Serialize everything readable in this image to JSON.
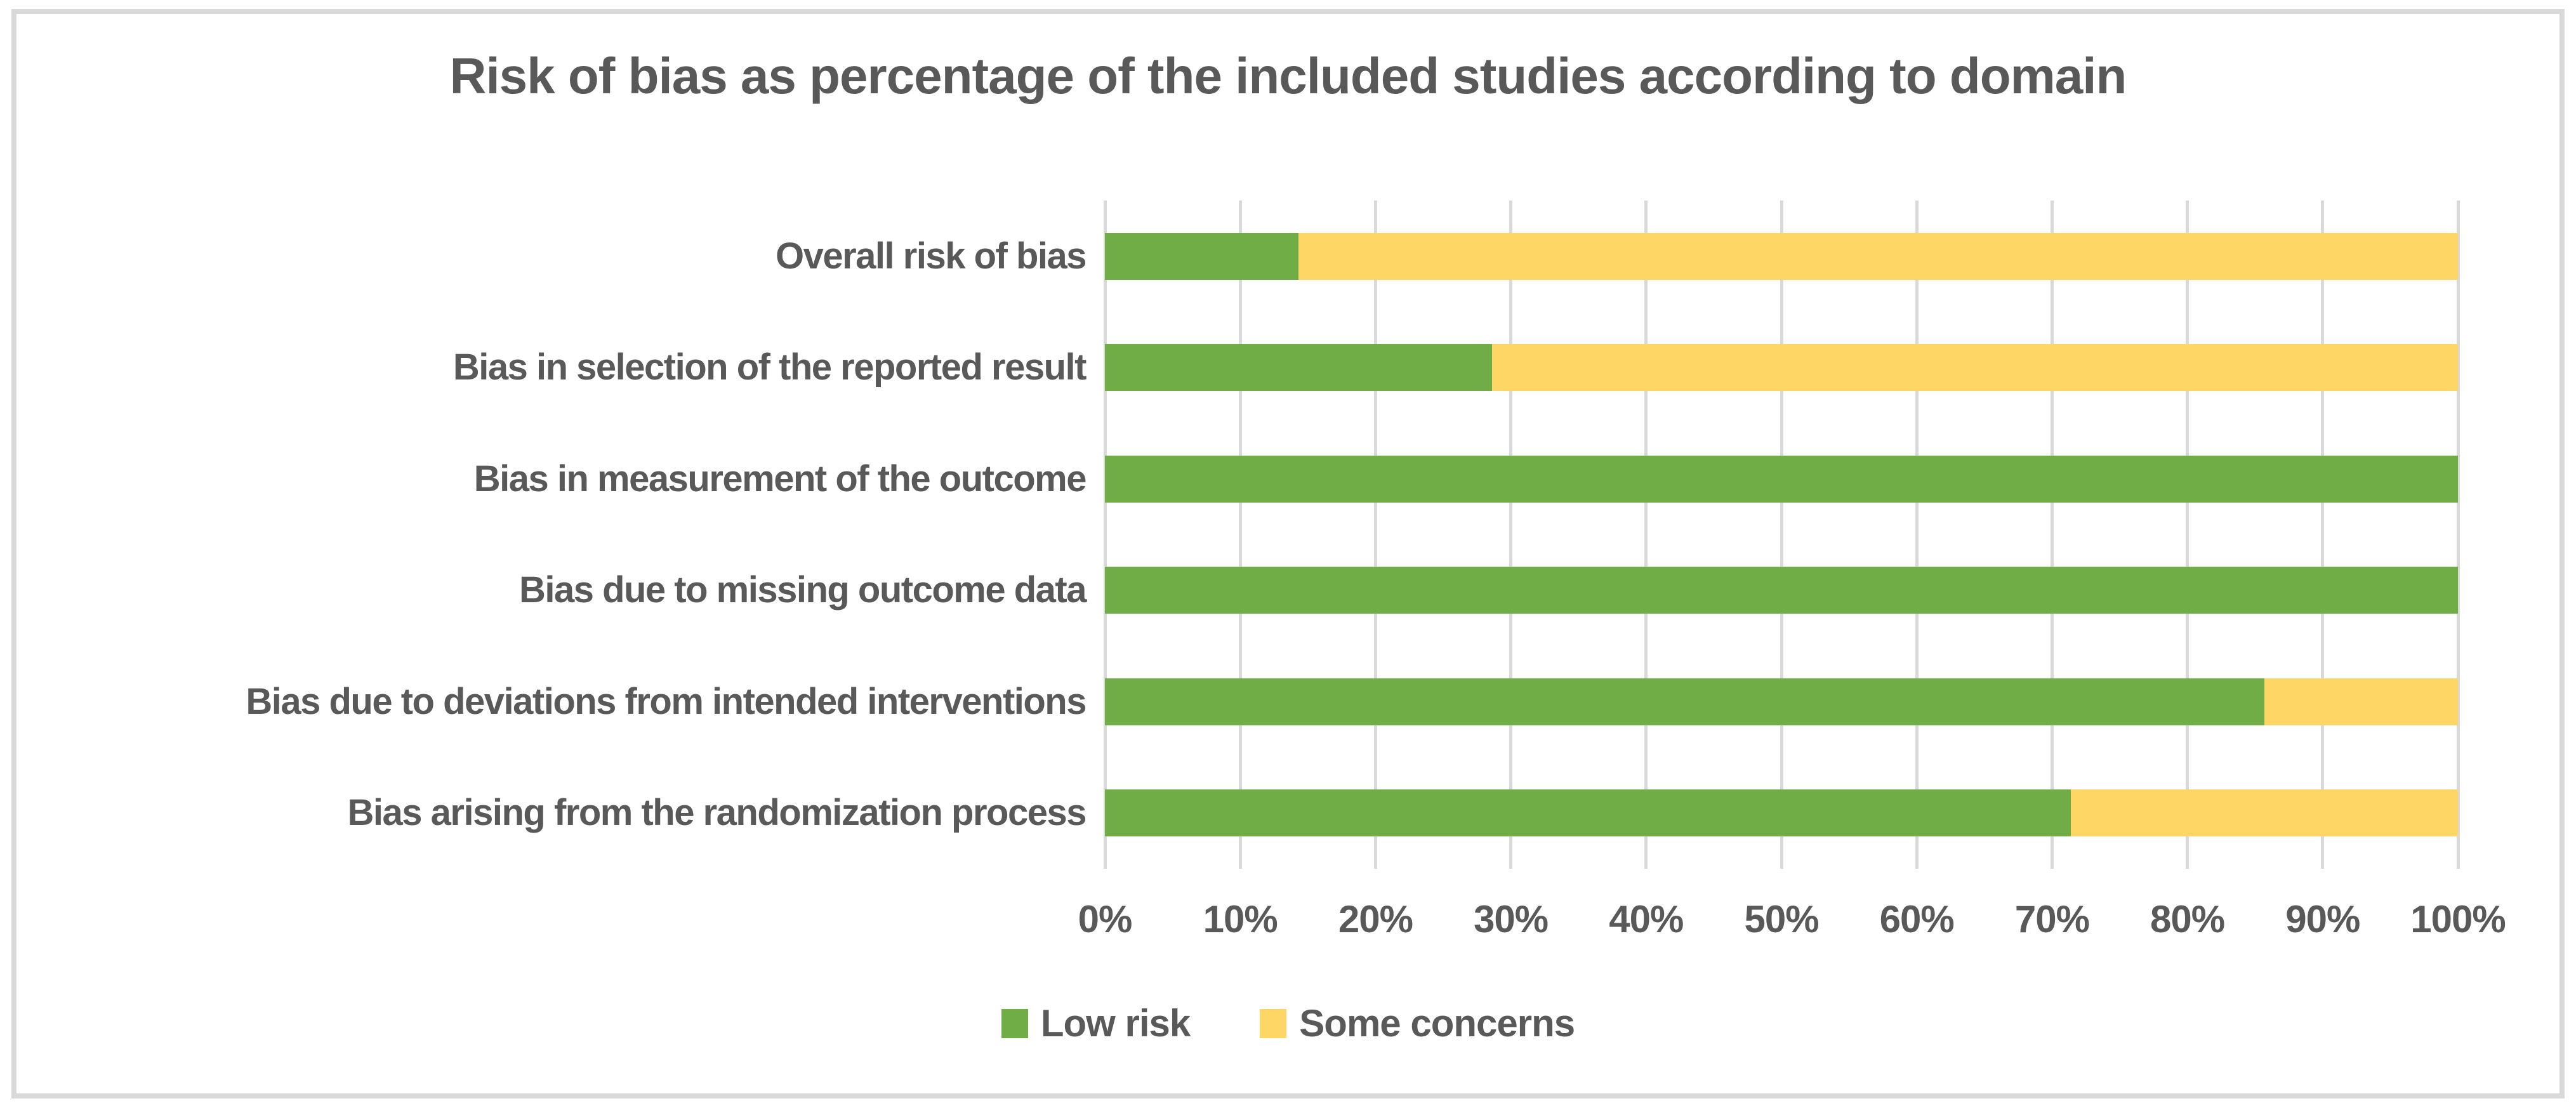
{
  "chart": {
    "title": "Risk of bias as percentage of the included studies according to domain",
    "text_color": "#595959",
    "gridline_color": "#D9D9D9",
    "frame_border_color": "#D9D9D9",
    "background_color": "#ffffff"
  },
  "chart_data": {
    "type": "bar",
    "orientation": "horizontal",
    "stacked": true,
    "title": "Risk of bias as percentage of the included studies according to domain",
    "categories": [
      "Overall risk of bias",
      "Bias in selection of the reported result",
      "Bias in measurement of the outcome",
      "Bias due to missing outcome data",
      "Bias due to deviations from intended interventions",
      "Bias arising from the randomization process"
    ],
    "series": [
      {
        "name": "Low risk",
        "color": "#70AD47",
        "values": [
          14.3,
          28.6,
          100,
          100,
          85.7,
          71.4
        ]
      },
      {
        "name": "Some concerns",
        "color": "#FDD665",
        "values": [
          85.7,
          71.4,
          0,
          0,
          14.3,
          28.6
        ]
      }
    ],
    "xlabel": "",
    "ylabel": "",
    "xlim": [
      0,
      100
    ],
    "x_tick_step": 10,
    "x_tick_labels": [
      "0%",
      "10%",
      "20%",
      "30%",
      "40%",
      "50%",
      "60%",
      "70%",
      "80%",
      "90%",
      "100%"
    ],
    "grid": "vertical-only",
    "legend_position": "bottom-center",
    "legend": [
      {
        "label": "Low risk",
        "color": "#70AD47"
      },
      {
        "label": "Some concerns",
        "color": "#FDD665"
      }
    ]
  }
}
